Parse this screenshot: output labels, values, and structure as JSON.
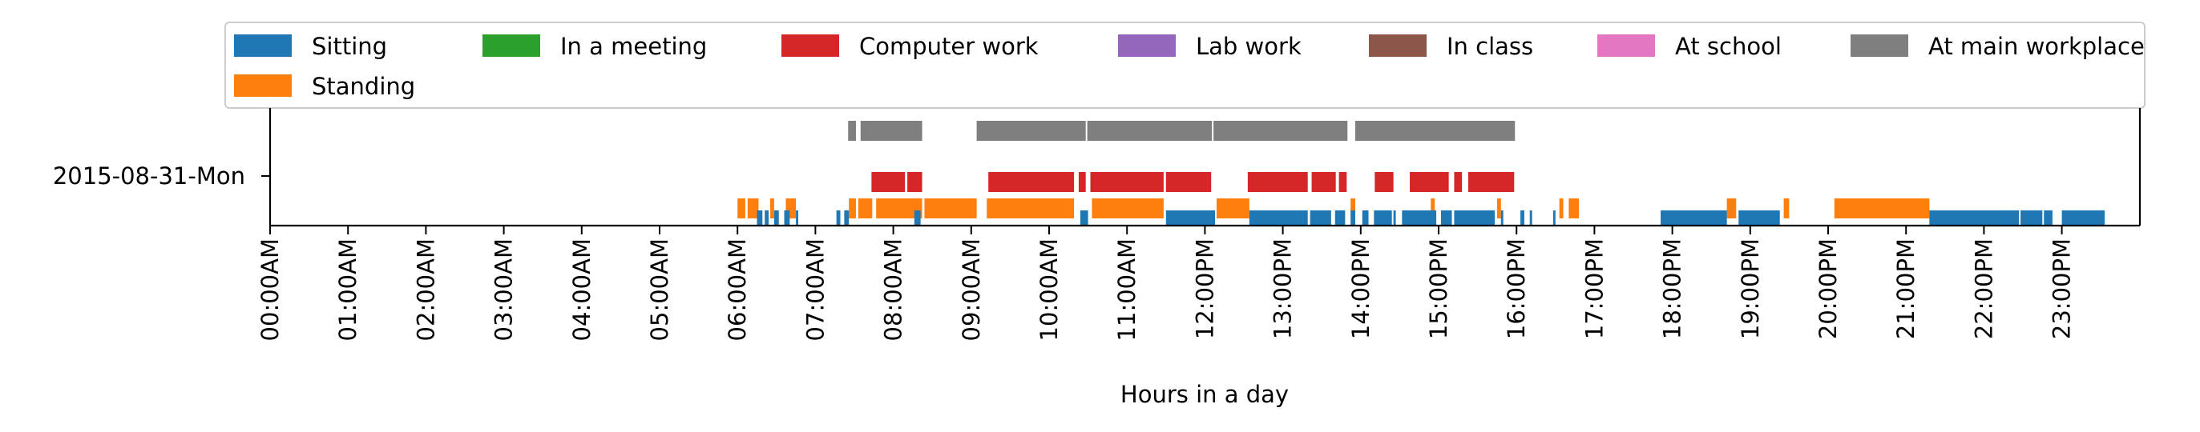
{
  "chart_data": {
    "type": "timeline",
    "title": "",
    "xlabel": "Hours in a day",
    "ylabel": "",
    "xlim_hours": [
      0,
      24
    ],
    "grid": false,
    "legend_position": "top",
    "y_tick_label": "2015-08-31-Mon",
    "x_tick_labels": [
      "00:00AM",
      "01:00AM",
      "02:00AM",
      "03:00AM",
      "04:00AM",
      "05:00AM",
      "06:00AM",
      "07:00AM",
      "08:00AM",
      "09:00AM",
      "10:00AM",
      "11:00AM",
      "12:00PM",
      "13:00PM",
      "14:00PM",
      "15:00PM",
      "16:00PM",
      "17:00PM",
      "18:00PM",
      "19:00PM",
      "20:00PM",
      "21:00PM",
      "22:00PM",
      "23:00PM"
    ],
    "legend": [
      {
        "label": "Sitting",
        "color": "#1f77b4"
      },
      {
        "label": "In a meeting",
        "color": "#2ca02c"
      },
      {
        "label": "Computer work",
        "color": "#d62728"
      },
      {
        "label": "Lab work",
        "color": "#9467bd"
      },
      {
        "label": "In class",
        "color": "#8c564b"
      },
      {
        "label": "At school",
        "color": "#e377c2"
      },
      {
        "label": "At main workplace",
        "color": "#7f7f7f"
      },
      {
        "label": "Standing",
        "color": "#ff7f0e"
      }
    ],
    "series": [
      {
        "name": "At main workplace",
        "color": "#7f7f7f",
        "row": "workplace",
        "intervals": [
          [
            7.42,
            7.52
          ],
          [
            7.58,
            8.37
          ],
          [
            9.07,
            10.47
          ],
          [
            10.49,
            12.09
          ],
          [
            12.11,
            13.83
          ],
          [
            13.93,
            15.98
          ]
        ]
      },
      {
        "name": "Computer work",
        "color": "#d62728",
        "row": "computer",
        "intervals": [
          [
            7.72,
            8.15
          ],
          [
            8.18,
            8.37
          ],
          [
            9.22,
            10.32
          ],
          [
            10.38,
            10.47
          ],
          [
            10.53,
            11.47
          ],
          [
            11.5,
            12.08
          ],
          [
            12.55,
            13.32
          ],
          [
            13.37,
            13.68
          ],
          [
            13.72,
            13.82
          ],
          [
            14.18,
            14.42
          ],
          [
            14.63,
            15.13
          ],
          [
            15.2,
            15.3
          ],
          [
            15.38,
            15.97
          ]
        ]
      },
      {
        "name": "Standing",
        "color": "#ff7f0e",
        "row": "standing",
        "intervals": [
          [
            6.0,
            6.1
          ],
          [
            6.13,
            6.27
          ],
          [
            6.42,
            6.47
          ],
          [
            6.62,
            6.75
          ],
          [
            7.43,
            7.52
          ],
          [
            7.55,
            7.73
          ],
          [
            7.78,
            8.37
          ],
          [
            8.4,
            9.07
          ],
          [
            9.2,
            10.32
          ],
          [
            10.55,
            11.47
          ],
          [
            12.15,
            12.57
          ],
          [
            13.87,
            13.93
          ],
          [
            14.9,
            14.95
          ],
          [
            15.75,
            15.8
          ],
          [
            16.55,
            16.6
          ],
          [
            16.67,
            16.8
          ],
          [
            18.7,
            18.82
          ],
          [
            19.43,
            19.5
          ],
          [
            20.08,
            21.3
          ]
        ]
      },
      {
        "name": "Sitting",
        "color": "#1f77b4",
        "row": "sitting",
        "intervals": [
          [
            6.25,
            6.32
          ],
          [
            6.35,
            6.4
          ],
          [
            6.47,
            6.53
          ],
          [
            6.6,
            6.67
          ],
          [
            6.75,
            6.78
          ],
          [
            7.27,
            7.32
          ],
          [
            7.37,
            7.43
          ],
          [
            8.27,
            8.35
          ],
          [
            10.4,
            10.5
          ],
          [
            11.5,
            12.13
          ],
          [
            12.57,
            13.32
          ],
          [
            13.35,
            13.62
          ],
          [
            13.67,
            13.8
          ],
          [
            13.87,
            13.93
          ],
          [
            14.02,
            14.1
          ],
          [
            14.17,
            14.4
          ],
          [
            14.42,
            14.45
          ],
          [
            14.53,
            14.97
          ],
          [
            15.03,
            15.17
          ],
          [
            15.2,
            15.72
          ],
          [
            15.8,
            15.83
          ],
          [
            16.05,
            16.1
          ],
          [
            16.17,
            16.2
          ],
          [
            16.47,
            16.5
          ],
          [
            17.85,
            18.7
          ],
          [
            18.85,
            19.38
          ],
          [
            21.3,
            22.45
          ],
          [
            22.47,
            22.75
          ],
          [
            22.77,
            22.88
          ],
          [
            23.0,
            23.55
          ]
        ]
      }
    ]
  }
}
